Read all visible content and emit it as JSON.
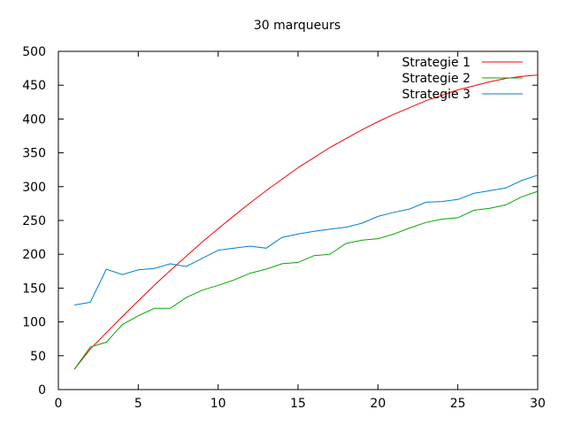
{
  "chart_data": {
    "type": "line",
    "title": "30 marqueurs",
    "xlabel": "",
    "ylabel": "",
    "xlim": [
      0,
      30
    ],
    "ylim": [
      0,
      500
    ],
    "xticks": [
      0,
      5,
      10,
      15,
      20,
      25,
      30
    ],
    "yticks": [
      0,
      50,
      100,
      150,
      200,
      250,
      300,
      350,
      400,
      450,
      500
    ],
    "grid": false,
    "legend_position": "top-right",
    "x": [
      1,
      2,
      3,
      4,
      5,
      6,
      7,
      8,
      9,
      10,
      11,
      12,
      13,
      14,
      15,
      16,
      17,
      18,
      19,
      20,
      21,
      22,
      23,
      24,
      25,
      26,
      27,
      28,
      29,
      30
    ],
    "series": [
      {
        "name": "Strategie 1",
        "color": "#ff0000",
        "values": [
          30,
          60,
          84,
          108,
          131,
          154,
          176,
          197,
          218,
          238,
          257,
          276,
          294,
          311,
          328,
          343,
          358,
          371,
          384,
          396,
          407,
          417,
          427,
          435,
          443,
          449,
          455,
          460,
          463,
          465
        ]
      },
      {
        "name": "Strategie 2",
        "color": "#00aa00",
        "values": [
          30,
          63,
          70,
          96,
          109,
          120,
          120,
          136,
          147,
          154,
          162,
          172,
          178,
          186,
          188,
          198,
          200,
          216,
          221,
          223,
          230,
          239,
          247,
          252,
          254,
          265,
          268,
          273,
          285,
          293
        ]
      },
      {
        "name": "Strategie 3",
        "color": "#0080d0",
        "values": [
          125,
          129,
          178,
          170,
          177,
          179,
          186,
          182,
          194,
          206,
          209,
          212,
          209,
          225,
          230,
          234,
          237,
          240,
          246,
          256,
          262,
          267,
          277,
          278,
          281,
          290,
          294,
          298,
          309,
          317
        ]
      }
    ]
  }
}
